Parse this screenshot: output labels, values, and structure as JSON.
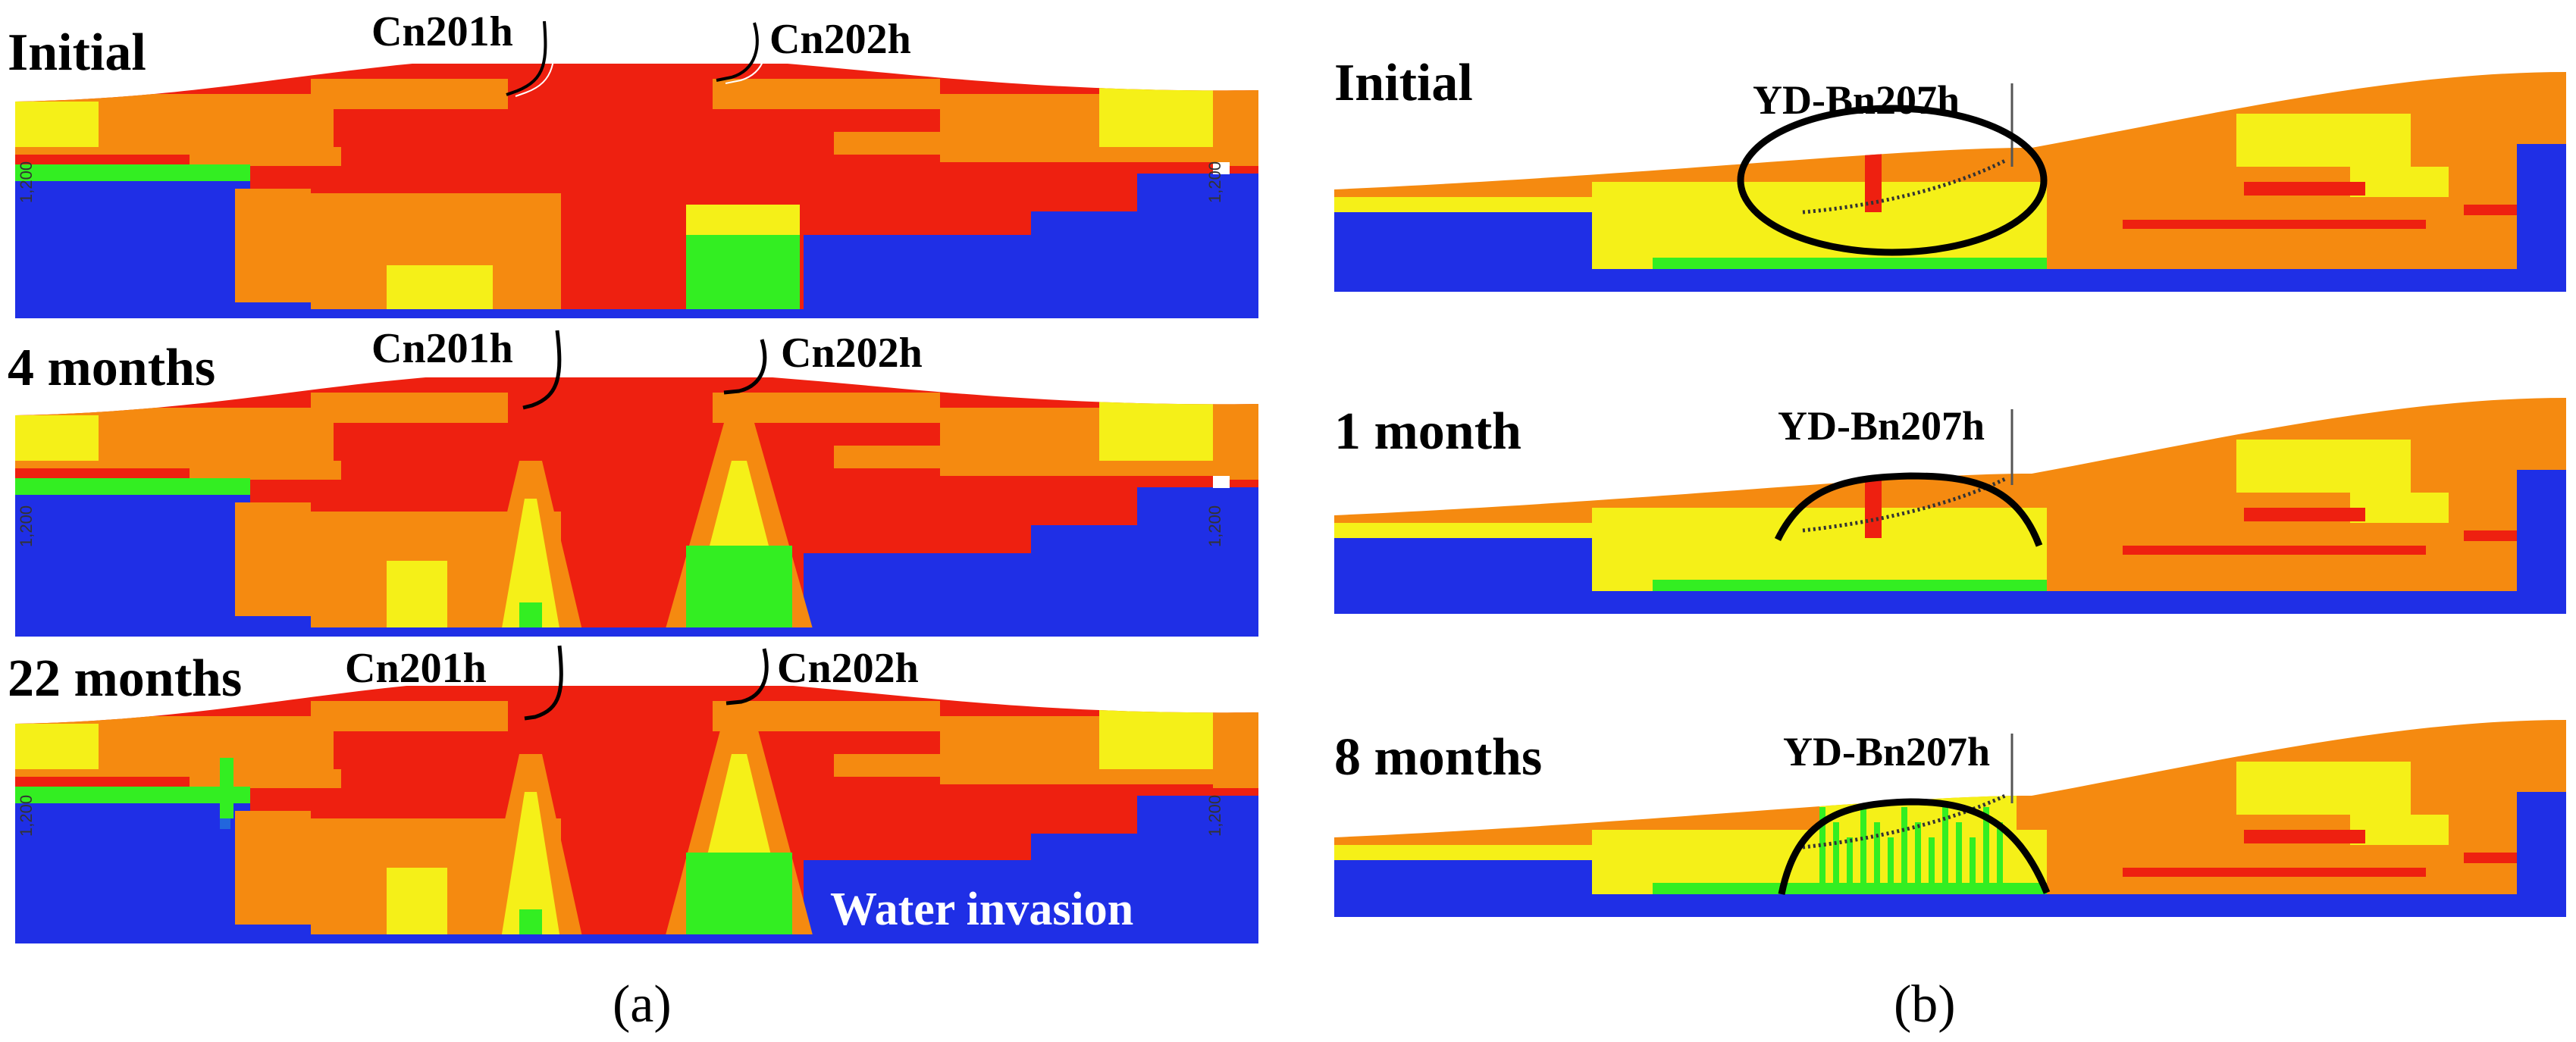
{
  "colors": {
    "background": "#ffffff",
    "water": "#1f2fe6",
    "green": "#33ee22",
    "yellow": "#f5f018",
    "orange": "#f58a10",
    "red": "#ee2010",
    "blueish": "#2266dd",
    "outline": "#000000"
  },
  "panel_a": {
    "caption": "(a)",
    "depth_tick": "1,200",
    "rows": [
      {
        "label": "Initial",
        "well_1": "Cn201h",
        "well_2": "Cn202h"
      },
      {
        "label": "4 months",
        "well_1": "Cn201h",
        "well_2": "Cn202h"
      },
      {
        "label": "22 months",
        "well_1": "Cn201h",
        "well_2": "Cn202h",
        "annotation": "Water invasion"
      }
    ]
  },
  "panel_b": {
    "caption": "(b)",
    "rows": [
      {
        "label": "Initial",
        "well": "YD-Bn207h"
      },
      {
        "label": "1 month",
        "well": "YD-Bn207h"
      },
      {
        "label": "8 months",
        "well": "YD-Bn207h"
      }
    ]
  }
}
